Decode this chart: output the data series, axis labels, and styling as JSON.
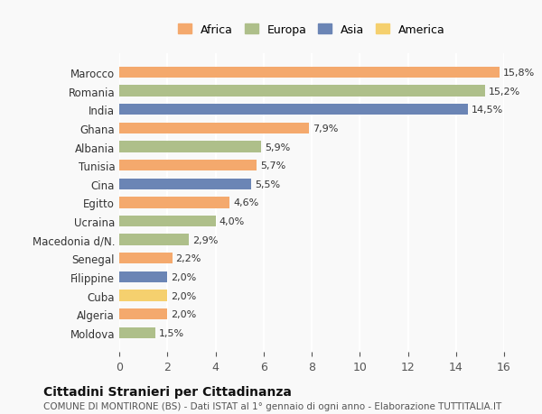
{
  "categories": [
    "Marocco",
    "Romania",
    "India",
    "Ghana",
    "Albania",
    "Tunisia",
    "Cina",
    "Egitto",
    "Ucraina",
    "Macedonia d/N.",
    "Senegal",
    "Filippine",
    "Cuba",
    "Algeria",
    "Moldova"
  ],
  "values": [
    15.8,
    15.2,
    14.5,
    7.9,
    5.9,
    5.7,
    5.5,
    4.6,
    4.0,
    2.9,
    2.2,
    2.0,
    2.0,
    2.0,
    1.5
  ],
  "labels": [
    "15,8%",
    "15,2%",
    "14,5%",
    "7,9%",
    "5,9%",
    "5,7%",
    "5,5%",
    "4,6%",
    "4,0%",
    "2,9%",
    "2,2%",
    "2,0%",
    "2,0%",
    "2,0%",
    "1,5%"
  ],
  "continents": [
    "Africa",
    "Europa",
    "Asia",
    "Africa",
    "Europa",
    "Africa",
    "Asia",
    "Africa",
    "Europa",
    "Europa",
    "Africa",
    "Asia",
    "America",
    "Africa",
    "Europa"
  ],
  "colors": {
    "Africa": "#F4A96D",
    "Europa": "#AEBF8A",
    "Asia": "#6B85B5",
    "America": "#F5D06E"
  },
  "legend_order": [
    "Africa",
    "Europa",
    "Asia",
    "America"
  ],
  "title": "Cittadini Stranieri per Cittadinanza",
  "subtitle": "COMUNE DI MONTIRONE (BS) - Dati ISTAT al 1° gennaio di ogni anno - Elaborazione TUTTITALIA.IT",
  "xlim": [
    0,
    16
  ],
  "xticks": [
    0,
    2,
    4,
    6,
    8,
    10,
    12,
    14,
    16
  ],
  "background_color": "#f9f9f9",
  "grid_color": "#ffffff",
  "bar_height": 0.6
}
